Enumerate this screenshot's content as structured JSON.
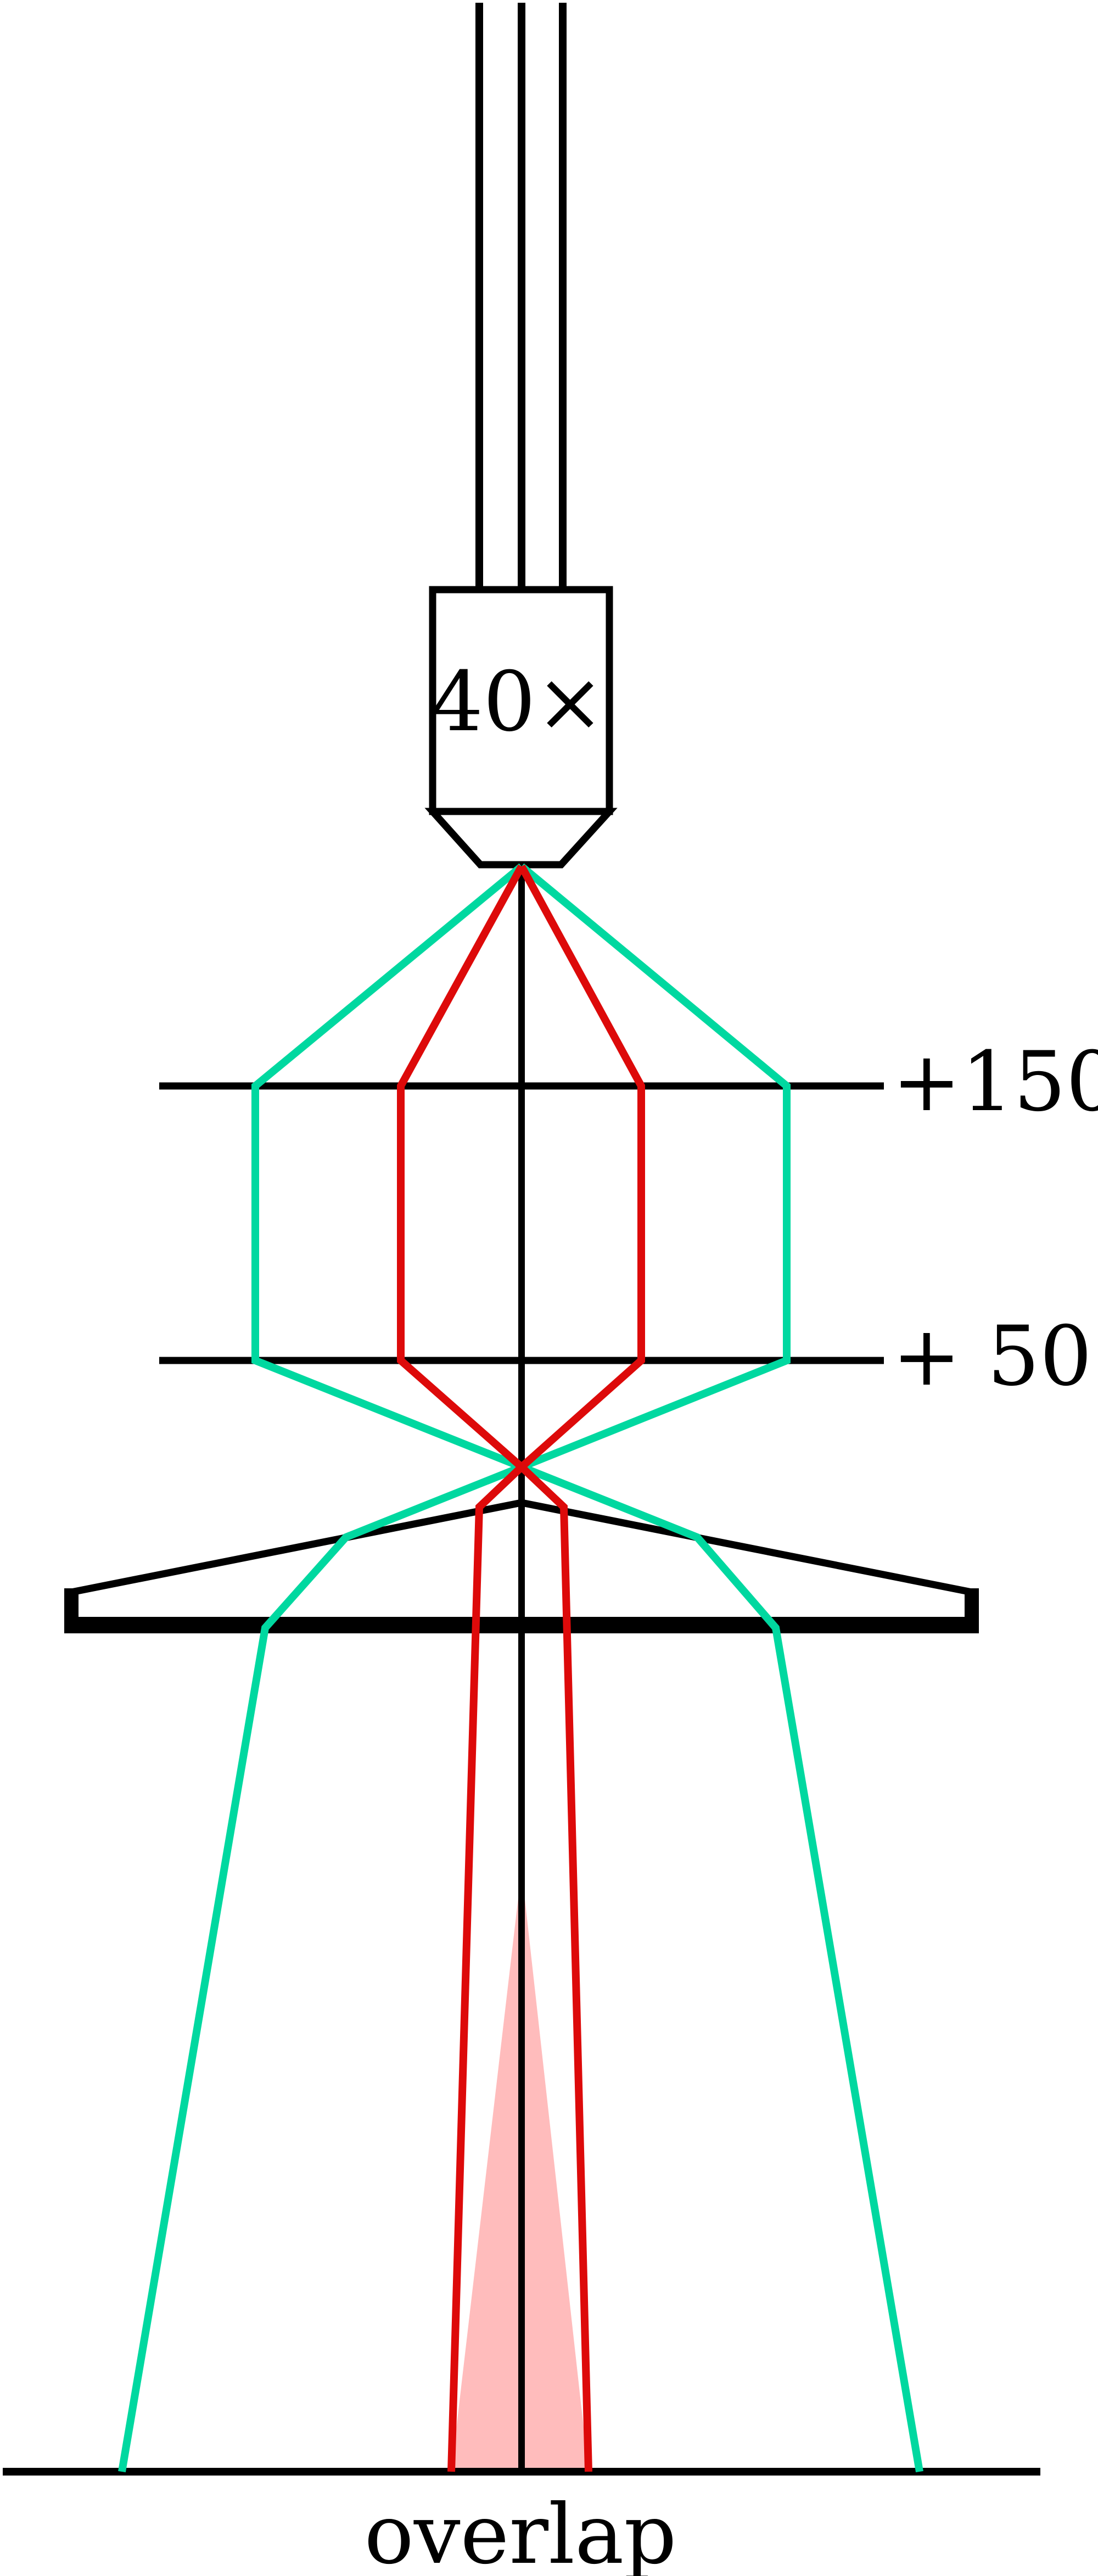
{
  "objective": {
    "label": "40×"
  },
  "lenses": [
    {
      "label": "+150"
    },
    {
      "label": "+ 50"
    }
  ],
  "screen": {
    "label": "overlap"
  },
  "colors": {
    "outline": "#000000",
    "red_ray": "#dd0a0a",
    "teal_ray": "#00d8a0",
    "overlap_fill": "#ffbcbc"
  }
}
